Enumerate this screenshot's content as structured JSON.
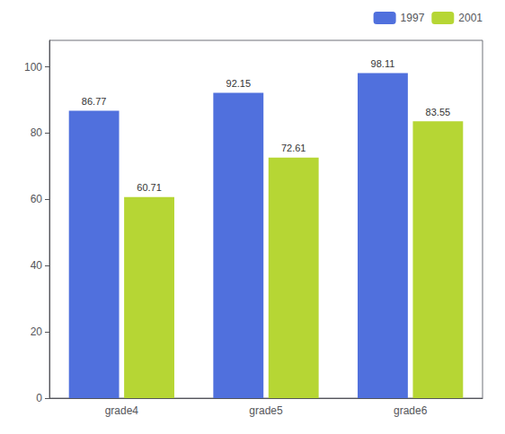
{
  "chart_data": {
    "type": "bar",
    "categories": [
      "grade4",
      "grade5",
      "grade6"
    ],
    "series": [
      {
        "name": "1997",
        "values": [
          86.77,
          92.15,
          98.11
        ]
      },
      {
        "name": "2001",
        "values": [
          60.71,
          72.61,
          83.55
        ]
      }
    ],
    "ylim": [
      0,
      108
    ],
    "yticks": [
      0,
      20,
      40,
      60,
      80,
      100
    ],
    "grid": false,
    "legend": "upper right",
    "data_labels": true
  }
}
